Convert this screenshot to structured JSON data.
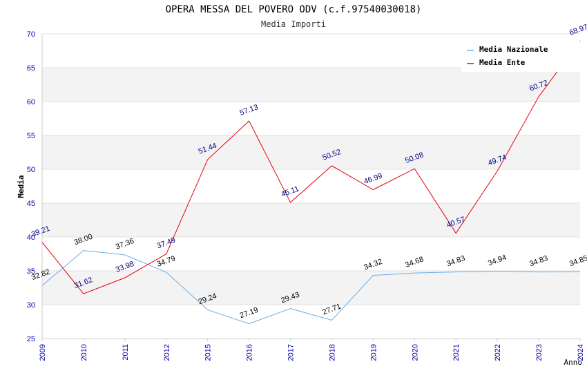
{
  "chart_data": {
    "type": "line",
    "title": "OPERA MESSA DEL POVERO ODV (c.f.97540030018)",
    "subtitle": "Media Importi",
    "xlabel": "Anno",
    "ylabel": "Media",
    "ylim": [
      25,
      70
    ],
    "yticks": [
      "25",
      "30",
      "35",
      "40",
      "45",
      "50",
      "55",
      "60",
      "65",
      "70"
    ],
    "categories": [
      "2009",
      "2010",
      "2011",
      "2012",
      "2015",
      "2016",
      "2017",
      "2018",
      "2019",
      "2020",
      "2021",
      "2022",
      "2023",
      "2024"
    ],
    "grid": "horizontal bands",
    "legend_position": "top-right",
    "series": [
      {
        "name": "Media Nazionale",
        "color": "#6aaee8",
        "label_color": "#000000",
        "values": [
          32.82,
          38.0,
          37.36,
          34.79,
          29.24,
          27.19,
          29.43,
          27.71,
          34.32,
          34.68,
          34.83,
          34.94,
          34.83,
          34.85
        ],
        "labels": [
          "32.82",
          "38.00",
          "37.36",
          "34.79",
          "29.24",
          "27.19",
          "29.43",
          "27.71",
          "34.32",
          "34.68",
          "34.83",
          "34.94",
          "34.83",
          "34.85"
        ]
      },
      {
        "name": "Media Ente",
        "color": "#e8000b",
        "label_color": "#000080",
        "values": [
          39.21,
          31.62,
          33.98,
          37.49,
          51.44,
          57.13,
          45.11,
          50.52,
          46.99,
          50.08,
          40.57,
          49.74,
          60.72,
          68.97
        ],
        "labels": [
          "39.21",
          "31.62",
          "33.98",
          "37.49",
          "51.44",
          "57.13",
          "45.11",
          "50.52",
          "46.99",
          "50.08",
          "40.57",
          "49.74",
          "60.72",
          "68.97"
        ]
      }
    ]
  }
}
